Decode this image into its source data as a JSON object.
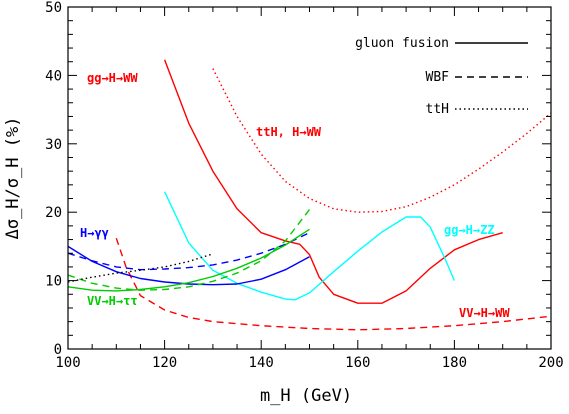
{
  "chart_data": {
    "type": "line",
    "xlabel": "m_H (GeV)",
    "ylabel": "Δσ_H/σ_H (%)",
    "xlim": [
      100,
      200
    ],
    "ylim": [
      0,
      50
    ],
    "xticks": [
      100,
      120,
      140,
      160,
      180,
      200
    ],
    "yticks": [
      0,
      10,
      20,
      30,
      40,
      50
    ],
    "grid": false,
    "legend_position": "top-right",
    "legend": [
      {
        "label": "gluon fusion",
        "style": "solid"
      },
      {
        "label": "WBF",
        "style": "dashed"
      },
      {
        "label": "ttH",
        "style": "dotted"
      }
    ],
    "series": [
      {
        "color": "#ff0000",
        "style": "solid",
        "x": [
          120,
          125,
          130,
          135,
          140,
          145,
          148,
          150,
          152,
          155,
          160,
          165,
          170,
          175,
          180,
          185,
          190
        ],
        "y": [
          42.3,
          33,
          26,
          20.5,
          17,
          15.8,
          15.3,
          13.8,
          10.5,
          8,
          6.7,
          6.7,
          8.5,
          11.8,
          14.5,
          16,
          17
        ]
      },
      {
        "color": "#ff0000",
        "style": "dotted",
        "x": [
          130,
          135,
          140,
          145,
          150,
          155,
          160,
          165,
          170,
          175,
          180,
          185,
          190,
          195,
          200
        ],
        "y": [
          41,
          34,
          28.5,
          24.5,
          22,
          20.5,
          20,
          20.1,
          20.8,
          22.2,
          24,
          26.3,
          28.8,
          31.5,
          34.5
        ]
      },
      {
        "color": "#ff0000",
        "style": "dashed",
        "x": [
          110,
          112,
          115,
          120,
          125,
          130,
          140,
          150,
          160,
          170,
          180,
          190,
          200
        ],
        "y": [
          16.2,
          12,
          7.8,
          5.7,
          4.6,
          4,
          3.4,
          3.0,
          2.8,
          3.0,
          3.4,
          4.0,
          4.8
        ]
      },
      {
        "color": "#00ffff",
        "style": "solid",
        "x": [
          120,
          125,
          130,
          135,
          140,
          145,
          147,
          150,
          155,
          160,
          165,
          170,
          173,
          175,
          178,
          180
        ],
        "y": [
          23,
          15.5,
          11.5,
          9.6,
          8.3,
          7.3,
          7.2,
          8.2,
          11.3,
          14.3,
          17.1,
          19.3,
          19.3,
          17.8,
          13.3,
          10
        ]
      },
      {
        "color": "#0000ff",
        "style": "solid",
        "x": [
          100,
          105,
          110,
          115,
          120,
          125,
          130,
          135,
          140,
          145,
          150
        ],
        "y": [
          15,
          12.8,
          11.3,
          10.3,
          9.8,
          9.5,
          9.4,
          9.5,
          10.2,
          11.6,
          13.5
        ]
      },
      {
        "color": "#0000ff",
        "style": "dashed",
        "x": [
          100,
          105,
          110,
          115,
          120,
          125,
          130,
          135,
          140,
          145,
          150
        ],
        "y": [
          14,
          12.9,
          12,
          11.6,
          11.7,
          11.9,
          12.3,
          13,
          14,
          15.3,
          17
        ]
      },
      {
        "color": "#00cc00",
        "style": "dashed",
        "x": [
          100,
          105,
          110,
          115,
          120,
          125,
          130,
          135,
          140,
          145,
          150
        ],
        "y": [
          10.8,
          9.6,
          8.9,
          8.6,
          8.7,
          9.1,
          9.9,
          11.1,
          12.9,
          15.8,
          20.4
        ]
      },
      {
        "color": "#00cc00",
        "style": "solid",
        "x": [
          100,
          105,
          110,
          115,
          120,
          125,
          130,
          135,
          140,
          145,
          150
        ],
        "y": [
          9.1,
          8.6,
          8.5,
          8.7,
          9.1,
          9.7,
          10.6,
          11.8,
          13.3,
          15.2,
          17.5
        ]
      },
      {
        "color": "#000000",
        "style": "dotted",
        "x": [
          100,
          105,
          110,
          115,
          120,
          125,
          130
        ],
        "y": [
          9.8,
          10.5,
          11.1,
          11.5,
          12.0,
          12.8,
          13.9
        ]
      }
    ],
    "annotations": [
      {
        "text": "gg→H→WW",
        "color": "#ff0000"
      },
      {
        "text": "ttH, H→WW",
        "color": "#ff0000"
      },
      {
        "text": "H→γγ",
        "color": "#0000ff"
      },
      {
        "text": "VV→H→ττ",
        "color": "#00cc00"
      },
      {
        "text": "gg→H→ZZ",
        "color": "#00ffff"
      },
      {
        "text": "VV→H→WW",
        "color": "#ff0000"
      }
    ]
  }
}
